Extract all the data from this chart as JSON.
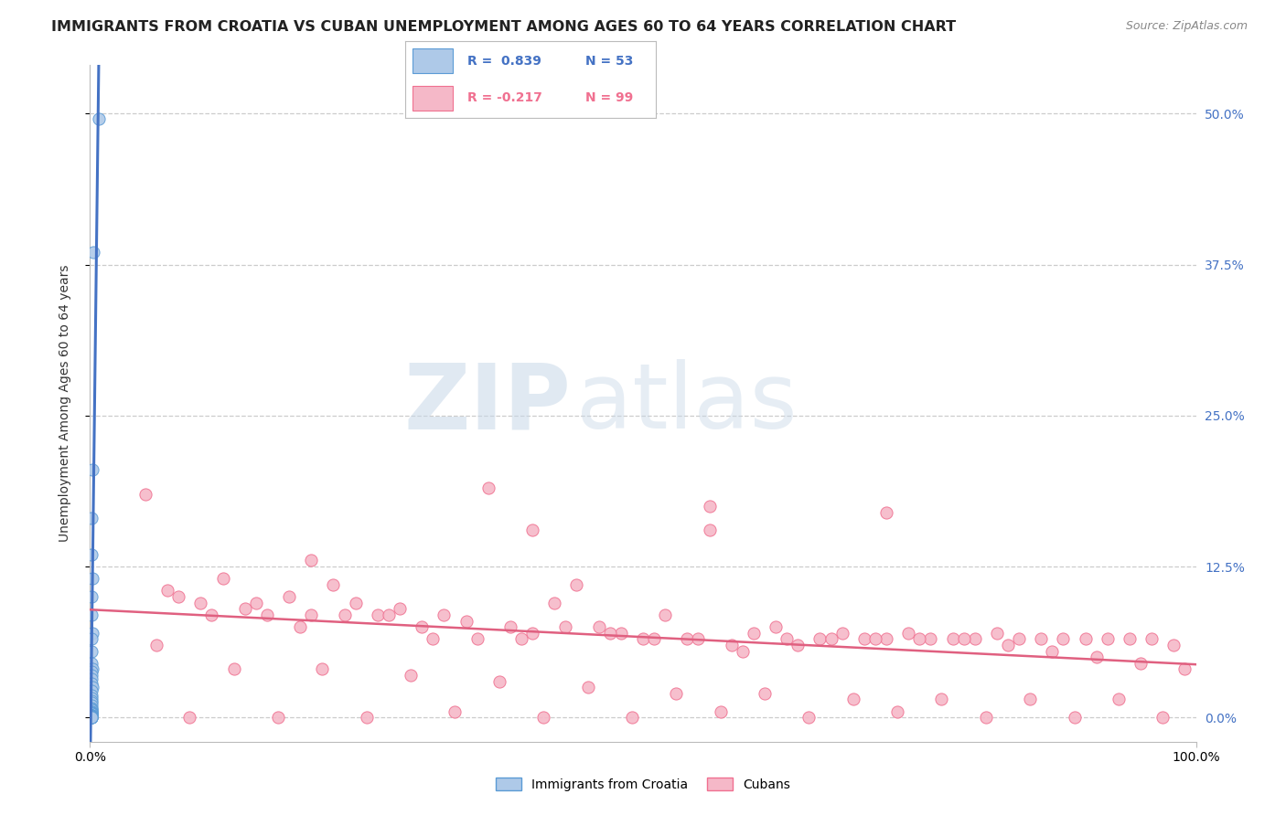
{
  "title": "IMMIGRANTS FROM CROATIA VS CUBAN UNEMPLOYMENT AMONG AGES 60 TO 64 YEARS CORRELATION CHART",
  "source": "Source: ZipAtlas.com",
  "ylabel": "Unemployment Among Ages 60 to 64 years",
  "xlim": [
    0,
    1.0
  ],
  "ylim": [
    -0.02,
    0.54
  ],
  "yticks": [
    0.0,
    0.125,
    0.25,
    0.375,
    0.5
  ],
  "ytick_labels": [
    "0.0%",
    "12.5%",
    "25.0%",
    "37.5%",
    "50.0%"
  ],
  "xtick_labels": [
    "0.0%",
    "100.0%"
  ],
  "grid_color": "#cccccc",
  "background_color": "#ffffff",
  "croatia_fill_color": "#aec9e8",
  "cuba_fill_color": "#f5b8c8",
  "croatia_edge_color": "#5b9bd5",
  "cuba_edge_color": "#f07090",
  "croatia_line_color": "#4472c4",
  "cuba_line_color": "#e06080",
  "legend_r_croatia": "R =  0.839",
  "legend_n_croatia": "N = 53",
  "legend_r_cuba": "R = -0.217",
  "legend_n_cuba": "N = 99",
  "watermark_zip": "ZIP",
  "watermark_atlas": "atlas",
  "title_fontsize": 11.5,
  "axis_label_fontsize": 10,
  "tick_fontsize": 10,
  "legend_fontsize": 10,
  "croatia_points_x": [
    0.008,
    0.003,
    0.002,
    0.001,
    0.001,
    0.002,
    0.001,
    0.001,
    0.002,
    0.001,
    0.001,
    0.001,
    0.002,
    0.001,
    0.001,
    0.001,
    0.001,
    0.002,
    0.001,
    0.001,
    0.001,
    0.001,
    0.001,
    0.001,
    0.001,
    0.001,
    0.001,
    0.001,
    0.001,
    0.001,
    0.001,
    0.001,
    0.001,
    0.001,
    0.001,
    0.001,
    0.001,
    0.001,
    0.001,
    0.001,
    0.001,
    0.001,
    0.001,
    0.001,
    0.001,
    0.001,
    0.001,
    0.001,
    0.001,
    0.001,
    0.001,
    0.001,
    0.001
  ],
  "croatia_points_y": [
    0.496,
    0.385,
    0.205,
    0.165,
    0.135,
    0.115,
    0.1,
    0.085,
    0.07,
    0.065,
    0.055,
    0.045,
    0.04,
    0.038,
    0.035,
    0.032,
    0.028,
    0.025,
    0.022,
    0.018,
    0.016,
    0.014,
    0.012,
    0.01,
    0.008,
    0.007,
    0.006,
    0.005,
    0.005,
    0.004,
    0.004,
    0.003,
    0.003,
    0.003,
    0.002,
    0.002,
    0.002,
    0.002,
    0.002,
    0.001,
    0.001,
    0.001,
    0.001,
    0.001,
    0.001,
    0.001,
    0.001,
    0.001,
    0.0,
    0.0,
    0.0,
    0.0,
    0.0
  ],
  "cuba_points_x": [
    0.05,
    0.08,
    0.1,
    0.12,
    0.14,
    0.16,
    0.18,
    0.2,
    0.22,
    0.24,
    0.26,
    0.28,
    0.3,
    0.32,
    0.34,
    0.36,
    0.38,
    0.4,
    0.42,
    0.44,
    0.46,
    0.48,
    0.5,
    0.52,
    0.54,
    0.56,
    0.58,
    0.6,
    0.62,
    0.64,
    0.66,
    0.68,
    0.7,
    0.72,
    0.74,
    0.76,
    0.78,
    0.8,
    0.82,
    0.84,
    0.86,
    0.88,
    0.9,
    0.92,
    0.94,
    0.96,
    0.98,
    0.07,
    0.11,
    0.15,
    0.19,
    0.23,
    0.27,
    0.31,
    0.35,
    0.39,
    0.43,
    0.47,
    0.51,
    0.55,
    0.59,
    0.63,
    0.67,
    0.71,
    0.75,
    0.79,
    0.83,
    0.87,
    0.91,
    0.95,
    0.99,
    0.06,
    0.13,
    0.21,
    0.29,
    0.37,
    0.45,
    0.53,
    0.61,
    0.69,
    0.77,
    0.85,
    0.93,
    0.09,
    0.17,
    0.25,
    0.33,
    0.41,
    0.49,
    0.57,
    0.65,
    0.73,
    0.81,
    0.89,
    0.97,
    0.2,
    0.4,
    0.56,
    0.72
  ],
  "cuba_points_y": [
    0.185,
    0.1,
    0.095,
    0.115,
    0.09,
    0.085,
    0.1,
    0.085,
    0.11,
    0.095,
    0.085,
    0.09,
    0.075,
    0.085,
    0.08,
    0.19,
    0.075,
    0.07,
    0.095,
    0.11,
    0.075,
    0.07,
    0.065,
    0.085,
    0.065,
    0.175,
    0.06,
    0.07,
    0.075,
    0.06,
    0.065,
    0.07,
    0.065,
    0.065,
    0.07,
    0.065,
    0.065,
    0.065,
    0.07,
    0.065,
    0.065,
    0.065,
    0.065,
    0.065,
    0.065,
    0.065,
    0.06,
    0.105,
    0.085,
    0.095,
    0.075,
    0.085,
    0.085,
    0.065,
    0.065,
    0.065,
    0.075,
    0.07,
    0.065,
    0.065,
    0.055,
    0.065,
    0.065,
    0.065,
    0.065,
    0.065,
    0.06,
    0.055,
    0.05,
    0.045,
    0.04,
    0.06,
    0.04,
    0.04,
    0.035,
    0.03,
    0.025,
    0.02,
    0.02,
    0.015,
    0.015,
    0.015,
    0.015,
    0.0,
    0.0,
    0.0,
    0.005,
    0.0,
    0.0,
    0.005,
    0.0,
    0.005,
    0.0,
    0.0,
    0.0,
    0.13,
    0.155,
    0.155,
    0.17
  ]
}
